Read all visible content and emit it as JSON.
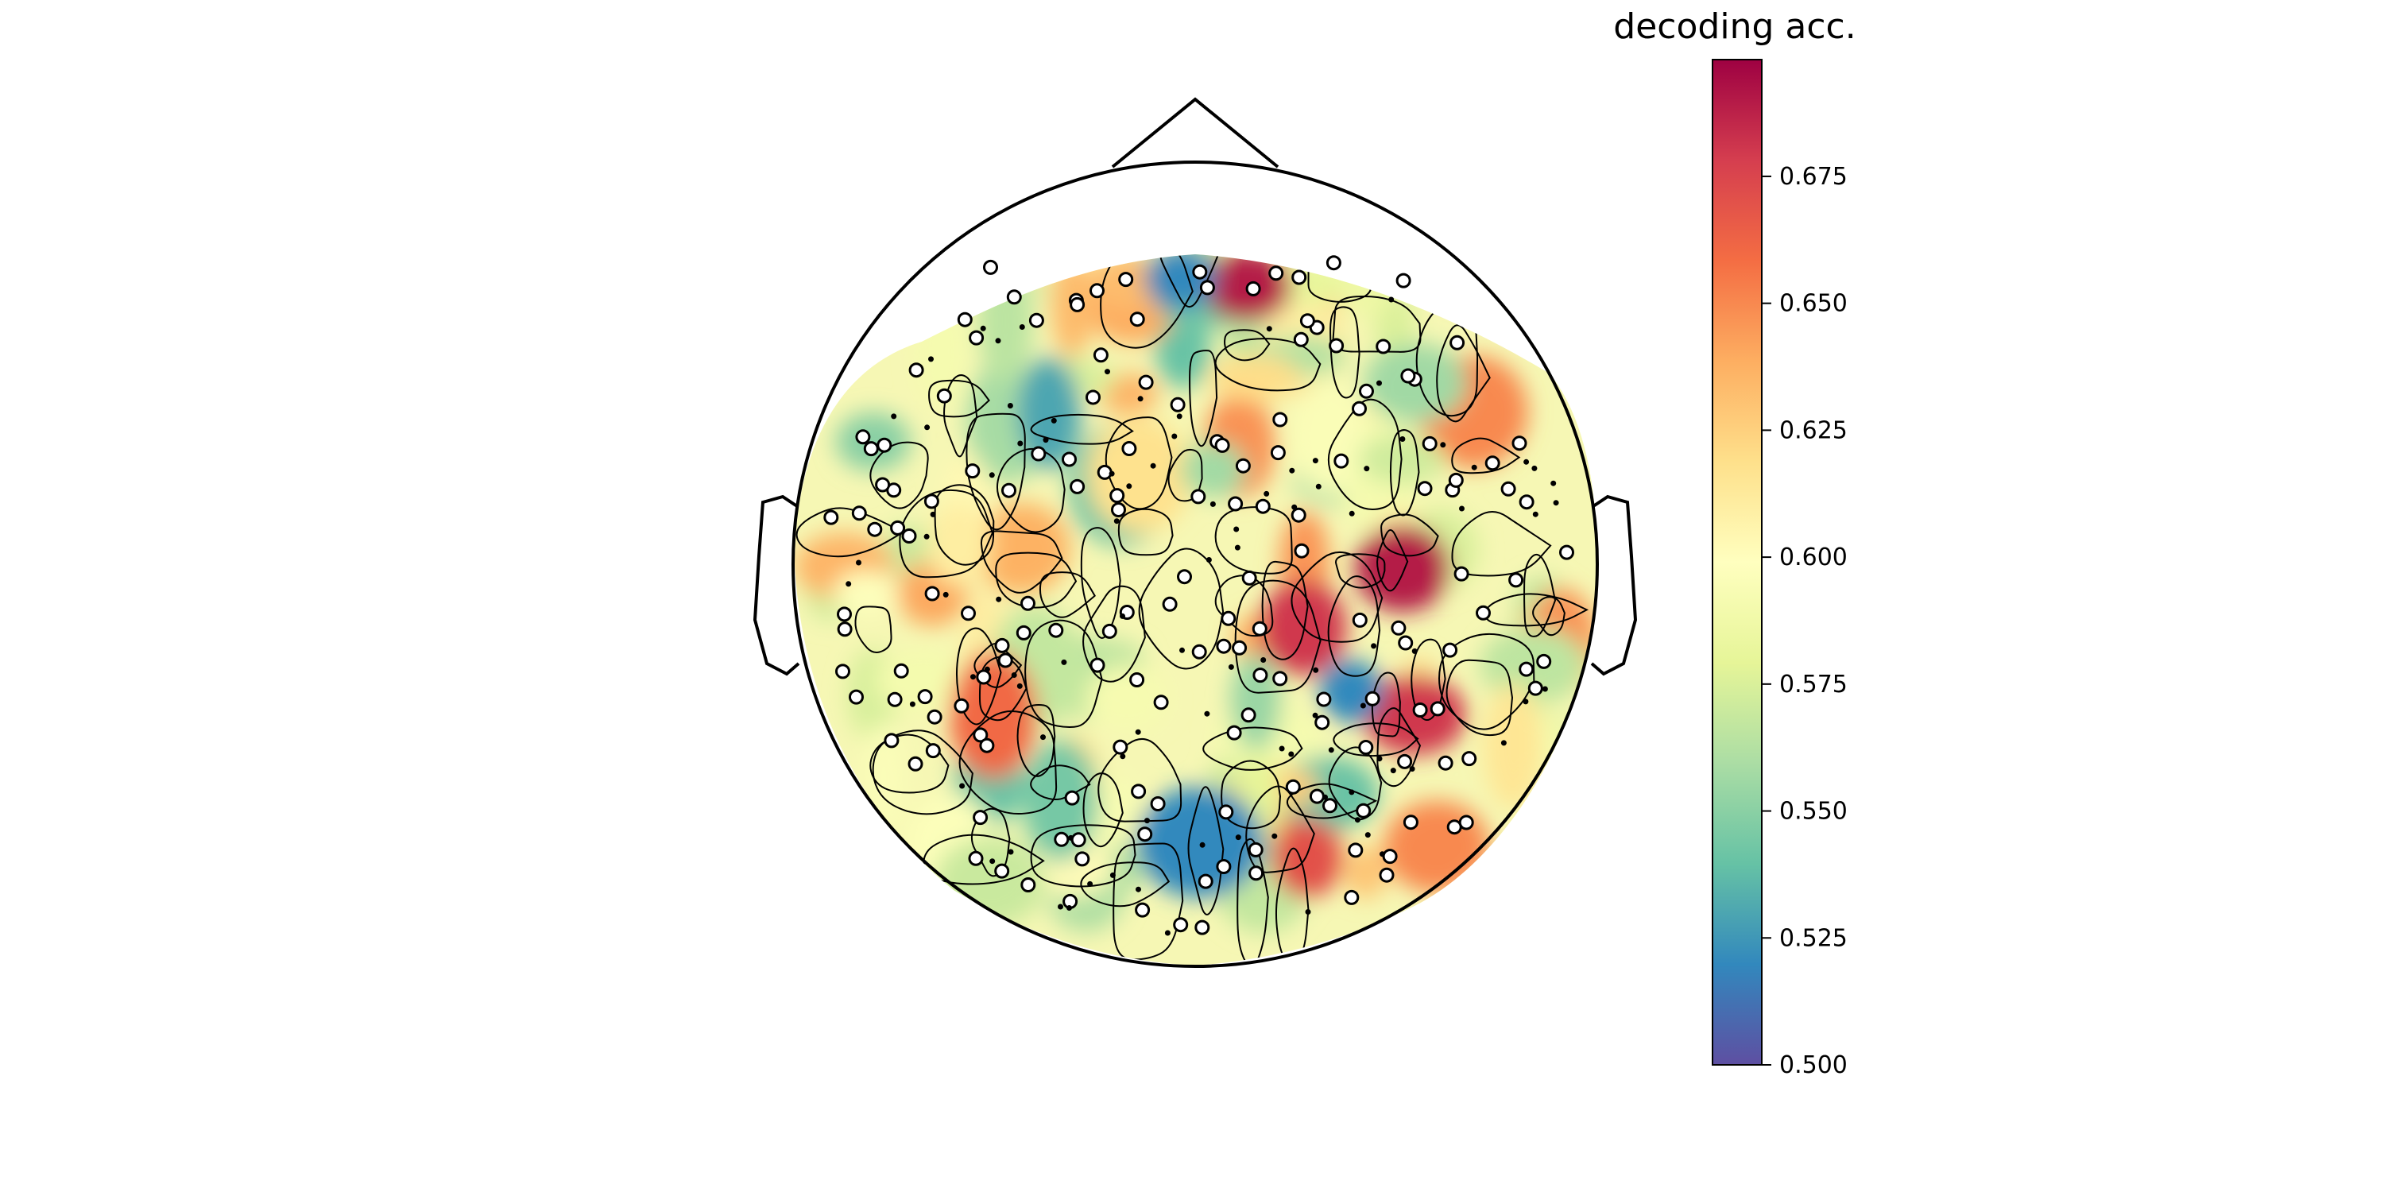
{
  "chart_data": {
    "type": "heatmap",
    "subtype": "eeg-topomap",
    "colormap": "Spectral_r",
    "colormap_stops": [
      "#5e4fa2",
      "#3288bd",
      "#66c2a5",
      "#abdda4",
      "#e6f598",
      "#ffffbf",
      "#fee08b",
      "#fdae61",
      "#f46d43",
      "#d53e4f",
      "#9e0142"
    ],
    "colorbar": {
      "title": "decoding acc.",
      "vmin": 0.5,
      "vmax": 0.698,
      "ticks": [
        0.5,
        0.525,
        0.55,
        0.575,
        0.6,
        0.625,
        0.65,
        0.675
      ],
      "tick_labels": [
        "0.500",
        "0.525",
        "0.550",
        "0.575",
        "0.600",
        "0.625",
        "0.650",
        "0.675"
      ]
    },
    "contour_lines": true,
    "sensor_count": 270,
    "hotspots": [
      {
        "region": "frontal-midline",
        "value": 0.69
      },
      {
        "region": "right-central",
        "value": 0.69
      },
      {
        "region": "central",
        "value": 0.68
      },
      {
        "region": "right-temporal",
        "value": 0.68
      },
      {
        "region": "left-temporal",
        "value": 0.66
      },
      {
        "region": "occipital",
        "value": 0.67
      }
    ],
    "coldspots": [
      {
        "region": "frontal",
        "value": 0.52
      },
      {
        "region": "left-frontal",
        "value": 0.53
      },
      {
        "region": "occipital-midline",
        "value": 0.52
      },
      {
        "region": "right-parietal",
        "value": 0.52
      }
    ]
  }
}
